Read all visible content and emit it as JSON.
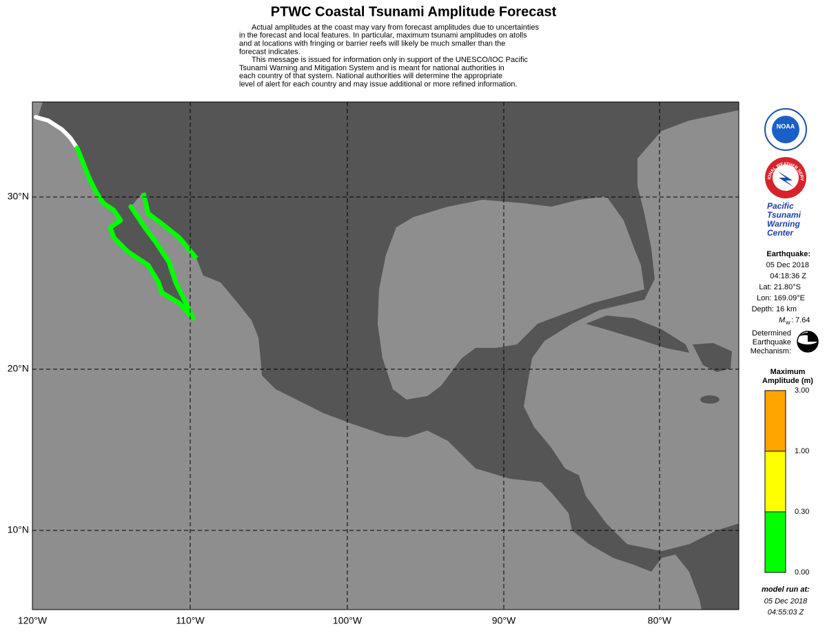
{
  "header": {
    "title": "PTWC Coastal Tsunami Amplitude Forecast",
    "disclaimer": [
      [
        "Actual amplitudes at the coast may vary from forecast amplitudes due to uncertainties",
        "in the forecast and local features.  In particular, maximum tsunami amplitudes on atolls",
        "and at locations with fringing or barrier reefs will likely be much smaller than the",
        "forecast indicates."
      ],
      [
        "This message is issued for information only in support of the UNESCO/IOC Pacific",
        "Tsunami Warning and Mitigation System and is meant for national authorities in",
        "each country of that system. National authorities will determine the appropriate",
        "level of alert for each country and may issue additional or more refined information."
      ]
    ]
  },
  "map": {
    "lat_labels": [
      "30°N",
      "20°N",
      "10°N"
    ],
    "lon_labels": [
      "120°W",
      "110°W",
      "100°W",
      "90°W",
      "80°W"
    ]
  },
  "sidebar": {
    "noaa_logo": "NOAA",
    "nws_logo": "NATIONAL WEATHER SERVICE",
    "center": [
      "Pacific",
      "Tsunami",
      "Warning",
      "Center"
    ],
    "earthquake": {
      "heading": "Earthquake:",
      "date": "05 Dec 2018",
      "time": "04:18:36 Z",
      "lat": "Lat: 21.80°S",
      "lon": "Lon: 169.09°E",
      "depth": "Depth: 16 km",
      "magnitude_symbol": "M",
      "magnitude_subscript": "W",
      "magnitude_value": ": 7.64"
    },
    "mechanism": [
      "Determined",
      "Earthquake",
      "Mechanism:"
    ],
    "legend": {
      "title": [
        "Maximum",
        "Amplitude (m)"
      ],
      "bands": [
        {
          "color": "#ffa500"
        },
        {
          "color": "#ffff00"
        },
        {
          "color": "#00ff00"
        }
      ],
      "labels": [
        "3.00",
        "1.00",
        "0.30",
        "0.00"
      ]
    },
    "model_run": {
      "label": "model run at:",
      "date": "05 Dec 2018",
      "time": "04:55:03 Z"
    }
  }
}
